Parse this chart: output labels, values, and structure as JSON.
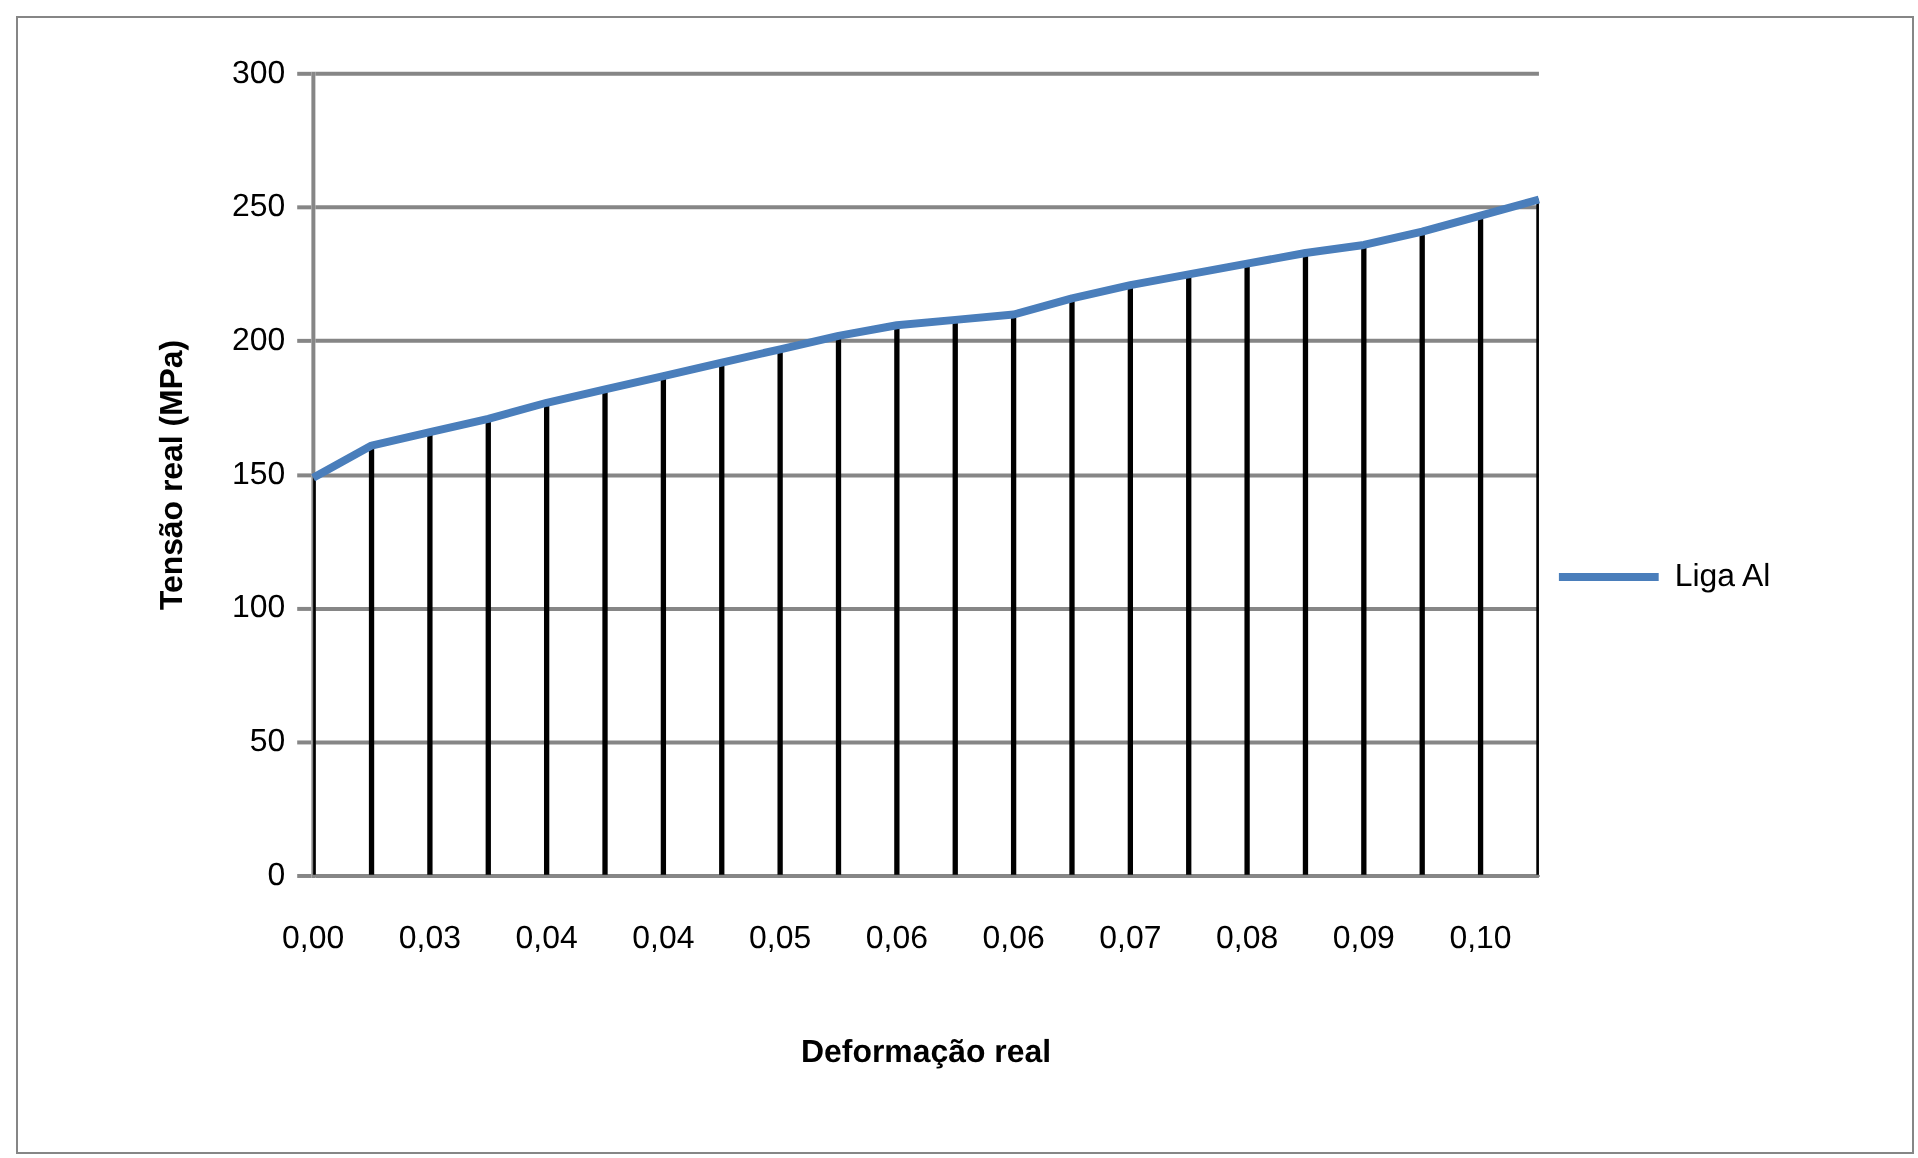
{
  "chart_data": {
    "type": "line",
    "xlabel": "Deformação real",
    "ylabel": "Tensão real (MPa)",
    "categories": [
      "0,00",
      null,
      "0,03",
      null,
      "0,04",
      null,
      "0,04",
      null,
      "0,05",
      null,
      "0,06",
      null,
      "0,06",
      null,
      "0,07",
      null,
      "0,08",
      null,
      "0,09",
      null,
      "0,10",
      null
    ],
    "series": [
      {
        "name": "Liga Al",
        "color": "#4a7ebb",
        "values": [
          149,
          161,
          166,
          171,
          177,
          182,
          187,
          192,
          197,
          202,
          206,
          208,
          210,
          216,
          221,
          225,
          229,
          233,
          236,
          241,
          247,
          253
        ]
      },
      {
        "type": "bar",
        "color": "#000000",
        "values": [
          149,
          161,
          166,
          171,
          177,
          182,
          187,
          192,
          197,
          202,
          206,
          208,
          210,
          216,
          221,
          225,
          229,
          233,
          236,
          241,
          247,
          253
        ]
      }
    ],
    "ylim": [
      0,
      300
    ],
    "yticks": [
      0,
      50,
      100,
      150,
      200,
      250,
      300
    ],
    "grid": "y",
    "legend": "right",
    "marker": "none",
    "line_style": "solid"
  }
}
